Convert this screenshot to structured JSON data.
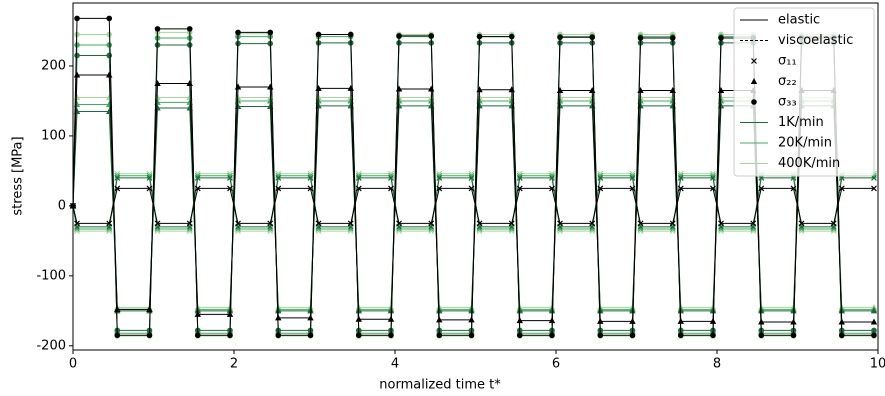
{
  "chart_data": {
    "type": "line",
    "xlabel": "normalized time t*",
    "ylabel": "stress [MPa]",
    "xlim": [
      0,
      10
    ],
    "ylim": [
      -206,
      290
    ],
    "xticks": [
      0,
      2,
      4,
      6,
      8,
      10
    ],
    "yticks": [
      -200,
      -100,
      0,
      100,
      200
    ],
    "x": [
      0,
      0.05,
      0.45,
      0.55,
      0.95,
      1.05,
      1.45,
      1.55,
      1.95,
      2.05,
      2.45,
      2.55,
      2.95,
      3.05,
      3.45,
      3.55,
      3.95,
      4.05,
      4.45,
      4.55,
      4.95,
      5.05,
      5.45,
      5.55,
      5.95,
      6.05,
      6.45,
      6.55,
      6.95,
      7.05,
      7.45,
      7.55,
      7.95,
      8.05,
      8.45,
      8.55,
      8.95,
      9.05,
      9.45,
      9.55,
      9.95
    ],
    "legend_position": "upper right",
    "legend": [
      {
        "label": "elastic",
        "line": "solid",
        "color": "#000000"
      },
      {
        "label": "viscoelastic",
        "line": "dashed",
        "color": "#000000"
      },
      {
        "label": "σ₁₁",
        "marker": "x",
        "color": "#000000"
      },
      {
        "label": "σ₂₂",
        "marker": "^",
        "color": "#000000"
      },
      {
        "label": "σ₃₃",
        "marker": "o",
        "color": "#000000"
      },
      {
        "label": "1K/min",
        "line": "solid",
        "color": "#1b6b3a"
      },
      {
        "label": "20K/min",
        "line": "solid",
        "color": "#41ab5d"
      },
      {
        "label": "400K/min",
        "line": "solid",
        "color": "#a1d99b"
      }
    ],
    "series": [
      {
        "color": "#a1d99b",
        "marker": "o",
        "values": [
          0,
          245,
          245,
          -186,
          -186,
          248,
          248,
          -186,
          -186,
          246,
          246,
          -186,
          -186,
          245,
          245,
          -186,
          -186,
          245,
          245,
          -186,
          -186,
          245,
          245,
          -186,
          -186,
          245,
          245,
          -186,
          -186,
          245,
          245,
          -186,
          -186,
          245,
          245,
          -186,
          -186,
          245,
          245,
          -186,
          -186
        ]
      },
      {
        "color": "#41ab5d",
        "marker": "o",
        "values": [
          0,
          230,
          230,
          -182,
          -182,
          240,
          240,
          -182,
          -182,
          242,
          242,
          -182,
          -182,
          242,
          242,
          -182,
          -182,
          242,
          242,
          -182,
          -182,
          242,
          242,
          -182,
          -182,
          242,
          242,
          -182,
          -182,
          242,
          242,
          -182,
          -182,
          242,
          242,
          -182,
          -182,
          242,
          242,
          -182,
          -182
        ]
      },
      {
        "color": "#1b6b3a",
        "marker": "o",
        "values": [
          0,
          215,
          215,
          -178,
          -178,
          230,
          230,
          -178,
          -178,
          232,
          232,
          -178,
          -178,
          233,
          233,
          -178,
          -178,
          233,
          233,
          -178,
          -178,
          233,
          233,
          -178,
          -178,
          233,
          233,
          -178,
          -178,
          233,
          233,
          -178,
          -178,
          233,
          233,
          -178,
          -178,
          233,
          233,
          -178,
          -178
        ]
      },
      {
        "color": "#a1d99b",
        "marker": "^",
        "values": [
          0,
          155,
          155,
          -145,
          -145,
          155,
          155,
          -145,
          -145,
          155,
          155,
          -145,
          -145,
          155,
          155,
          -145,
          -145,
          155,
          155,
          -145,
          -145,
          155,
          155,
          -145,
          -145,
          155,
          155,
          -145,
          -145,
          155,
          155,
          -145,
          -145,
          155,
          155,
          -145,
          -145,
          155,
          155,
          -145,
          -145
        ]
      },
      {
        "color": "#41ab5d",
        "marker": "^",
        "values": [
          0,
          145,
          145,
          -148,
          -148,
          148,
          148,
          -148,
          -148,
          150,
          150,
          -148,
          -148,
          150,
          150,
          -148,
          -148,
          150,
          150,
          -148,
          -148,
          150,
          150,
          -148,
          -148,
          150,
          150,
          -148,
          -148,
          150,
          150,
          -148,
          -148,
          150,
          150,
          -148,
          -148,
          150,
          150,
          -148,
          -148
        ]
      },
      {
        "color": "#1b6b3a",
        "marker": "^",
        "values": [
          0,
          135,
          135,
          -150,
          -150,
          140,
          140,
          -150,
          -150,
          142,
          142,
          -150,
          -150,
          143,
          143,
          -150,
          -150,
          143,
          143,
          -150,
          -150,
          143,
          143,
          -150,
          -150,
          143,
          143,
          -150,
          -150,
          143,
          143,
          -150,
          -150,
          143,
          143,
          -150,
          -150,
          143,
          143,
          -150,
          -150
        ]
      },
      {
        "color": "#a1d99b",
        "marker": "x",
        "values": [
          0,
          -36,
          -36,
          46,
          46,
          -36,
          -36,
          46,
          46,
          -36,
          -36,
          46,
          46,
          -36,
          -36,
          46,
          46,
          -36,
          -36,
          46,
          46,
          -36,
          -36,
          46,
          46,
          -36,
          -36,
          46,
          46,
          -36,
          -36,
          46,
          46,
          -36,
          -36,
          46,
          46,
          -36,
          -36,
          46,
          46
        ]
      },
      {
        "color": "#41ab5d",
        "marker": "x",
        "values": [
          0,
          -33,
          -33,
          43,
          43,
          -33,
          -33,
          43,
          43,
          -33,
          -33,
          43,
          43,
          -33,
          -33,
          43,
          43,
          -33,
          -33,
          43,
          43,
          -33,
          -33,
          43,
          43,
          -33,
          -33,
          43,
          43,
          -33,
          -33,
          43,
          43,
          -33,
          -33,
          43,
          43,
          -33,
          -33,
          43,
          43
        ]
      },
      {
        "color": "#1b6b3a",
        "marker": "x",
        "values": [
          0,
          -30,
          -30,
          40,
          40,
          -30,
          -30,
          40,
          40,
          -30,
          -30,
          40,
          40,
          -30,
          -30,
          40,
          40,
          -30,
          -30,
          40,
          40,
          -30,
          -30,
          40,
          40,
          -30,
          -30,
          40,
          40,
          -30,
          -30,
          40,
          40,
          -30,
          -30,
          40,
          40,
          -30,
          -30,
          40,
          40
        ]
      },
      {
        "color": "#000000",
        "marker": "o",
        "values": [
          0,
          268,
          268,
          -185,
          -185,
          253,
          253,
          -185,
          -185,
          248,
          248,
          -185,
          -185,
          245,
          245,
          -185,
          -185,
          243,
          243,
          -185,
          -185,
          242,
          242,
          -185,
          -185,
          241,
          241,
          -185,
          -185,
          240,
          240,
          -185,
          -185,
          240,
          240,
          -185,
          -185,
          240,
          240,
          -185,
          -185
        ]
      },
      {
        "color": "#000000",
        "marker": "^",
        "values": [
          0,
          187,
          187,
          -148,
          -148,
          175,
          175,
          -155,
          -155,
          170,
          170,
          -160,
          -160,
          168,
          168,
          -162,
          -162,
          167,
          167,
          -163,
          -163,
          166,
          166,
          -164,
          -164,
          165,
          165,
          -165,
          -165,
          165,
          165,
          -165,
          -165,
          165,
          165,
          -166,
          -166,
          165,
          165,
          -166,
          -166
        ]
      },
      {
        "color": "#000000",
        "marker": "x",
        "values": [
          0,
          -25,
          -25,
          25,
          25,
          -25,
          -25,
          25,
          25,
          -25,
          -25,
          25,
          25,
          -25,
          -25,
          25,
          25,
          -25,
          -25,
          25,
          25,
          -25,
          -25,
          25,
          25,
          -25,
          -25,
          25,
          25,
          -25,
          -25,
          25,
          25,
          -25,
          -25,
          25,
          25,
          -25,
          -25,
          25,
          25
        ]
      }
    ]
  }
}
